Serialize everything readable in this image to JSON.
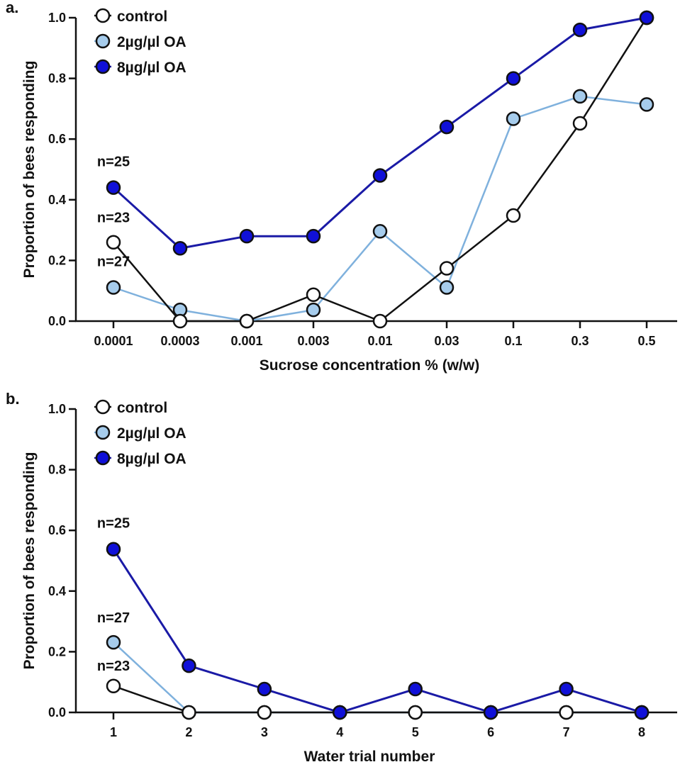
{
  "chart_data": [
    {
      "type": "line",
      "panel_label": "a.",
      "xlabel": "Sucrose concentration % (w/w)",
      "ylabel": "Proportion of bees responding",
      "categories": [
        "0.0001",
        "0.0003",
        "0.001",
        "0.003",
        "0.01",
        "0.03",
        "0.1",
        "0.3",
        "0.5"
      ],
      "ylim": [
        0,
        1.0
      ],
      "yticks": [
        "0.0",
        "0.2",
        "0.4",
        "0.6",
        "0.8",
        "1.0"
      ],
      "legend_position": "top-left",
      "series": [
        {
          "name": "control",
          "style": "control",
          "values": [
            0.26,
            0.0,
            0.0,
            0.087,
            0.0,
            0.174,
            0.348,
            0.652,
            1.0
          ],
          "n_label": "n=23"
        },
        {
          "name": "2µg/µl OA",
          "style": "low",
          "values": [
            0.111,
            0.037,
            0.0,
            0.037,
            0.296,
            0.111,
            0.667,
            0.741,
            0.714
          ],
          "n_label": "n=27"
        },
        {
          "name": "8µg/µl OA",
          "style": "high",
          "values": [
            0.44,
            0.24,
            0.28,
            0.28,
            0.48,
            0.64,
            0.8,
            0.96,
            1.0
          ],
          "n_label": "n=25"
        }
      ],
      "grid": false
    },
    {
      "type": "line",
      "panel_label": "b.",
      "xlabel": "Water trial number",
      "ylabel": "Proportion of bees responding",
      "categories": [
        "1",
        "2",
        "3",
        "4",
        "5",
        "6",
        "7",
        "8"
      ],
      "ylim": [
        0,
        1.0
      ],
      "yticks": [
        "0.0",
        "0.2",
        "0.4",
        "0.6",
        "0.8",
        "1.0"
      ],
      "legend_position": "top-left",
      "series": [
        {
          "name": "control",
          "style": "control",
          "values": [
            0.087,
            0.0,
            0.0,
            0.0,
            0.0,
            0.0,
            0.0,
            0.0
          ],
          "n_label": "n=23"
        },
        {
          "name": "2µg/µl OA",
          "style": "low",
          "values": [
            0.231,
            0.0,
            0.0,
            0.0,
            0.0,
            0.0,
            0.0,
            0.0
          ],
          "n_label": "n=27"
        },
        {
          "name": "8µg/µl OA",
          "style": "high",
          "values": [
            0.538,
            0.154,
            0.077,
            0.0,
            0.077,
            0.0,
            0.077,
            0.0
          ],
          "n_label": "n=25"
        }
      ],
      "grid": false
    }
  ],
  "colors": {
    "control_line": "#111111",
    "control_fill": "#ffffff",
    "low_line": "#7fb1dd",
    "low_fill": "#a6ccec",
    "high_line": "#1a1aa6",
    "high_fill": "#1010d8",
    "marker_stroke": "#111111"
  }
}
